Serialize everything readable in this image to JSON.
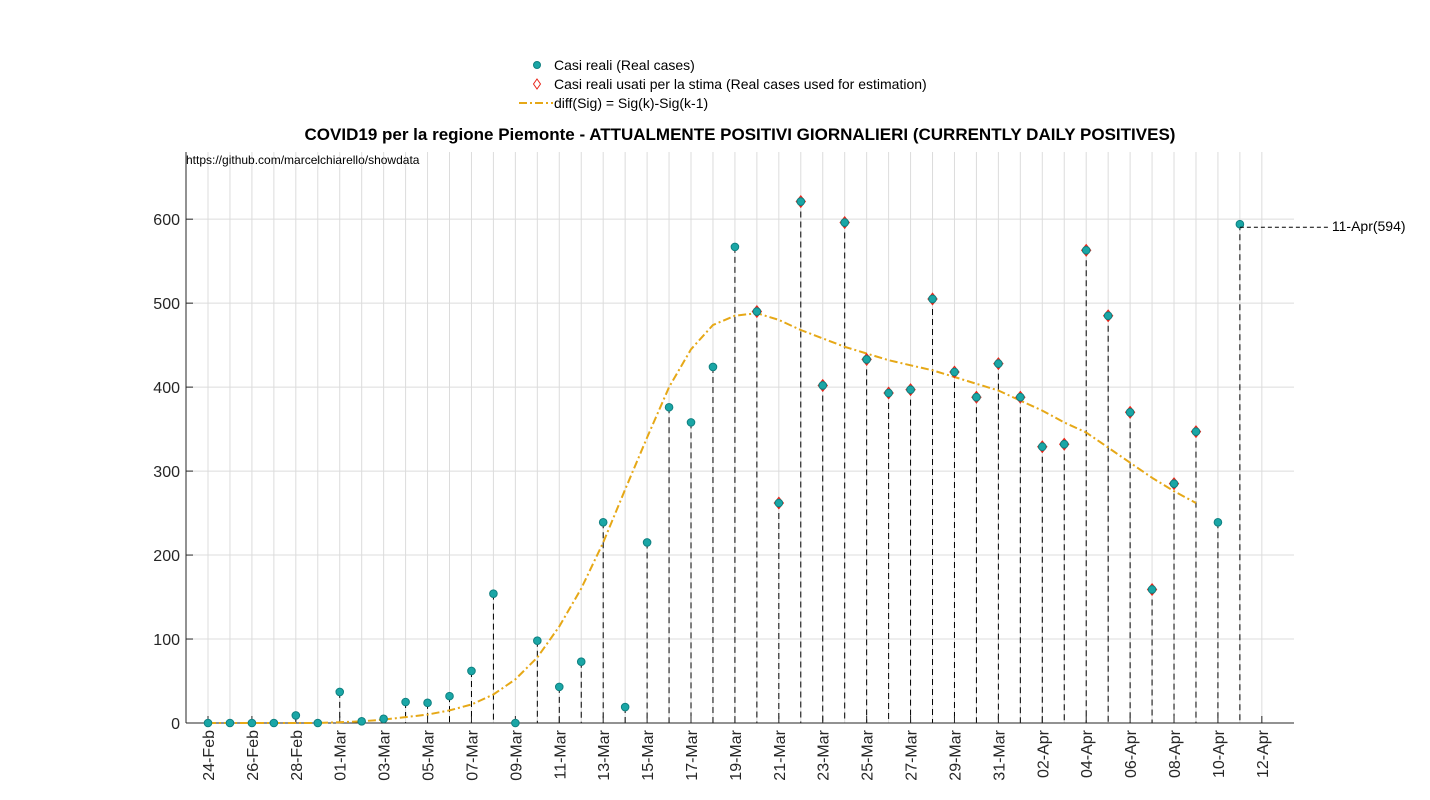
{
  "chart_data": {
    "type": "scatter",
    "title": "COVID19 per la regione Piemonte - ATTUALMENTE POSITIVI GIORNALIERI (CURRENTLY DAILY POSITIVES)",
    "source_text": "https://github.com/marcelchiarello/showdata",
    "xlabel": "",
    "ylabel": "",
    "ylim": [
      0,
      680
    ],
    "yticks": [
      0,
      100,
      200,
      300,
      400,
      500,
      600
    ],
    "grid": true,
    "legend_position": "top-center",
    "x_dates": [
      "24-Feb",
      "25-Feb",
      "26-Feb",
      "27-Feb",
      "28-Feb",
      "29-Feb",
      "01-Mar",
      "02-Mar",
      "03-Mar",
      "04-Mar",
      "05-Mar",
      "06-Mar",
      "07-Mar",
      "08-Mar",
      "09-Mar",
      "10-Mar",
      "11-Mar",
      "12-Mar",
      "13-Mar",
      "14-Mar",
      "15-Mar",
      "16-Mar",
      "17-Mar",
      "18-Mar",
      "19-Mar",
      "20-Mar",
      "21-Mar",
      "22-Mar",
      "23-Mar",
      "24-Mar",
      "25-Mar",
      "26-Mar",
      "27-Mar",
      "28-Mar",
      "29-Mar",
      "30-Mar",
      "31-Mar",
      "01-Apr",
      "02-Apr",
      "03-Apr",
      "04-Apr",
      "05-Apr",
      "06-Apr",
      "07-Apr",
      "08-Apr",
      "09-Apr",
      "10-Apr",
      "11-Apr",
      "12-Apr"
    ],
    "x_tick_labels": [
      "24-Feb",
      "26-Feb",
      "28-Feb",
      "01-Mar",
      "03-Mar",
      "05-Mar",
      "07-Mar",
      "09-Mar",
      "11-Mar",
      "13-Mar",
      "15-Mar",
      "17-Mar",
      "19-Mar",
      "21-Mar",
      "23-Mar",
      "25-Mar",
      "27-Mar",
      "29-Mar",
      "31-Mar",
      "02-Apr",
      "04-Apr",
      "06-Apr",
      "08-Apr",
      "10-Apr",
      "12-Apr"
    ],
    "series": [
      {
        "name": "Casi reali (Real cases)",
        "marker": "circle",
        "color": "#1aa6a6",
        "values": [
          0,
          0,
          0,
          0,
          9,
          0,
          37,
          2,
          5,
          25,
          24,
          32,
          62,
          154,
          0,
          98,
          43,
          73,
          239,
          19,
          215,
          376,
          358,
          424,
          567,
          490,
          262,
          621,
          402,
          596,
          433,
          393,
          397,
          505,
          418,
          388,
          428,
          388,
          329,
          332,
          563,
          485,
          370,
          159,
          285,
          347,
          239,
          594
        ]
      },
      {
        "name": "Casi reali usati per la stima (Real cases used for estimation)",
        "marker": "diamond",
        "color": "#e8261a",
        "x": [
          "20-Mar",
          "21-Mar",
          "22-Mar",
          "23-Mar",
          "24-Mar",
          "25-Mar",
          "26-Mar",
          "27-Mar",
          "28-Mar",
          "29-Mar",
          "30-Mar",
          "31-Mar",
          "01-Apr",
          "02-Apr",
          "03-Apr",
          "04-Apr",
          "05-Apr",
          "06-Apr",
          "07-Apr",
          "08-Apr",
          "09-Apr"
        ],
        "values": [
          490,
          262,
          621,
          402,
          596,
          433,
          393,
          397,
          505,
          418,
          388,
          428,
          388,
          329,
          332,
          563,
          485,
          370,
          159,
          285,
          347
        ]
      },
      {
        "name": "diff(Sig) = Sig(k)-Sig(k-1)",
        "line": "dash-dot",
        "color": "#e6a817",
        "values": [
          0,
          0,
          0,
          0,
          0,
          0,
          1,
          2,
          4,
          7,
          10,
          15,
          22,
          34,
          52,
          78,
          115,
          160,
          215,
          278,
          340,
          400,
          445,
          474,
          485,
          488,
          480,
          468,
          458,
          448,
          440,
          432,
          426,
          420,
          412,
          404,
          396,
          384,
          372,
          358,
          346,
          328,
          310,
          292,
          276,
          262
        ]
      }
    ],
    "annotations": [
      {
        "label": "11-Apr(594)",
        "x": "11-Apr",
        "y": 594
      }
    ]
  }
}
